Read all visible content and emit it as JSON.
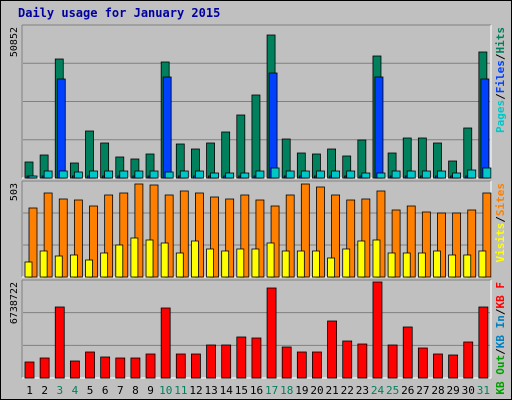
{
  "title": "Daily usage for January 2015",
  "colors": {
    "hits": "#00805c",
    "files": "#0040ff",
    "pages": "#00c8c8",
    "visits": "#ffff00",
    "sites": "#ff8000",
    "kb_f": "#ff0000",
    "kb_in": "#0080c0",
    "kb_out": "#00a000",
    "weekend_label": "#00805c",
    "weekday_label": "#000000"
  },
  "chart_data": [
    {
      "type": "bar",
      "name": "hits-files-pages",
      "ymax_label": "50852",
      "ylim": [
        0,
        50852
      ],
      "legend": [
        {
          "label": "Pages",
          "color": "#00c8c8"
        },
        {
          "label": "Files",
          "color": "#0040ff"
        },
        {
          "label": "Hits",
          "color": "#00805c"
        }
      ],
      "categories": [
        "1",
        "2",
        "3",
        "4",
        "5",
        "6",
        "7",
        "8",
        "9",
        "10",
        "11",
        "12",
        "13",
        "14",
        "15",
        "16",
        "17",
        "18",
        "19",
        "20",
        "21",
        "22",
        "23",
        "24",
        "25",
        "26",
        "27",
        "28",
        "29",
        "30",
        "31"
      ],
      "series": [
        {
          "name": "Hits",
          "values": [
            5300,
            7600,
            40000,
            5000,
            15900,
            11800,
            7100,
            6300,
            8100,
            39200,
            11400,
            9600,
            11800,
            15400,
            21200,
            28100,
            48300,
            13000,
            8400,
            8100,
            9800,
            7300,
            12800,
            41000,
            8300,
            13400,
            13400,
            11900,
            5600,
            17000,
            42500
          ]
        },
        {
          "name": "Files",
          "values": [
            700,
            700,
            33200,
            700,
            700,
            700,
            700,
            700,
            700,
            34000,
            700,
            700,
            700,
            700,
            700,
            700,
            35300,
            700,
            700,
            700,
            700,
            700,
            700,
            34000,
            700,
            700,
            700,
            700,
            700,
            700,
            33200
          ]
        },
        {
          "name": "Pages",
          "values": [
            800,
            2200,
            2200,
            1900,
            2200,
            2200,
            2200,
            2200,
            2200,
            1900,
            2200,
            2200,
            1700,
            1700,
            1700,
            2200,
            3400,
            2200,
            2200,
            2200,
            2200,
            2200,
            1700,
            1700,
            2200,
            2200,
            2200,
            2200,
            1600,
            2800,
            3300
          ]
        }
      ]
    },
    {
      "type": "bar",
      "name": "visits-sites",
      "ymax_label": "503",
      "ylim": [
        0,
        503
      ],
      "legend": [
        {
          "label": "Visits",
          "color": "#ffff00"
        },
        {
          "label": "Sites",
          "color": "#ff8000"
        }
      ],
      "categories": [
        "1",
        "2",
        "3",
        "4",
        "5",
        "6",
        "7",
        "8",
        "9",
        "10",
        "11",
        "12",
        "13",
        "14",
        "15",
        "16",
        "17",
        "18",
        "19",
        "20",
        "21",
        "22",
        "23",
        "24",
        "25",
        "26",
        "27",
        "28",
        "29",
        "30",
        "31"
      ],
      "series": [
        {
          "name": "Sites",
          "values": [
            370,
            450,
            420,
            410,
            380,
            440,
            450,
            500,
            490,
            440,
            460,
            450,
            430,
            420,
            440,
            410,
            380,
            440,
            500,
            480,
            440,
            410,
            420,
            460,
            360,
            380,
            350,
            340,
            340,
            360,
            450
          ]
        },
        {
          "name": "Visits",
          "values": [
            80,
            140,
            110,
            120,
            90,
            130,
            170,
            210,
            200,
            180,
            130,
            190,
            150,
            140,
            150,
            150,
            180,
            140,
            140,
            140,
            100,
            150,
            190,
            200,
            130,
            130,
            130,
            140,
            120,
            120,
            140
          ]
        }
      ]
    },
    {
      "type": "bar",
      "name": "kbytes",
      "ymax_label": "6738722",
      "ylim": [
        0,
        6738722
      ],
      "legend": [
        {
          "label": "KB Out",
          "color": "#00a000"
        },
        {
          "label": "KB In",
          "color": "#0080c0"
        },
        {
          "label": "KB F",
          "color": "#ff0000"
        }
      ],
      "categories": [
        "1",
        "2",
        "3",
        "4",
        "5",
        "6",
        "7",
        "8",
        "9",
        "10",
        "11",
        "12",
        "13",
        "14",
        "15",
        "16",
        "17",
        "18",
        "19",
        "20",
        "21",
        "22",
        "23",
        "24",
        "25",
        "26",
        "27",
        "28",
        "29",
        "30",
        "31"
      ],
      "series": [
        {
          "name": "KB F",
          "values": [
            1100000,
            1400000,
            5000000,
            1200000,
            1800000,
            1500000,
            1400000,
            1400000,
            1700000,
            4900000,
            1700000,
            1700000,
            2300000,
            2300000,
            2900000,
            2800000,
            6300000,
            2200000,
            1800000,
            1800000,
            4000000,
            2600000,
            2400000,
            6900000,
            2300000,
            3600000,
            2100000,
            1700000,
            1600000,
            2500000,
            5000000
          ]
        }
      ]
    }
  ],
  "x_labels": [
    "1",
    "2",
    "3",
    "4",
    "5",
    "6",
    "7",
    "8",
    "9",
    "10",
    "11",
    "12",
    "13",
    "14",
    "15",
    "16",
    "17",
    "18",
    "19",
    "20",
    "21",
    "22",
    "23",
    "24",
    "25",
    "26",
    "27",
    "28",
    "29",
    "30",
    "31"
  ],
  "weekend_days": [
    "3",
    "4",
    "10",
    "11",
    "17",
    "18",
    "24",
    "25",
    "31"
  ]
}
